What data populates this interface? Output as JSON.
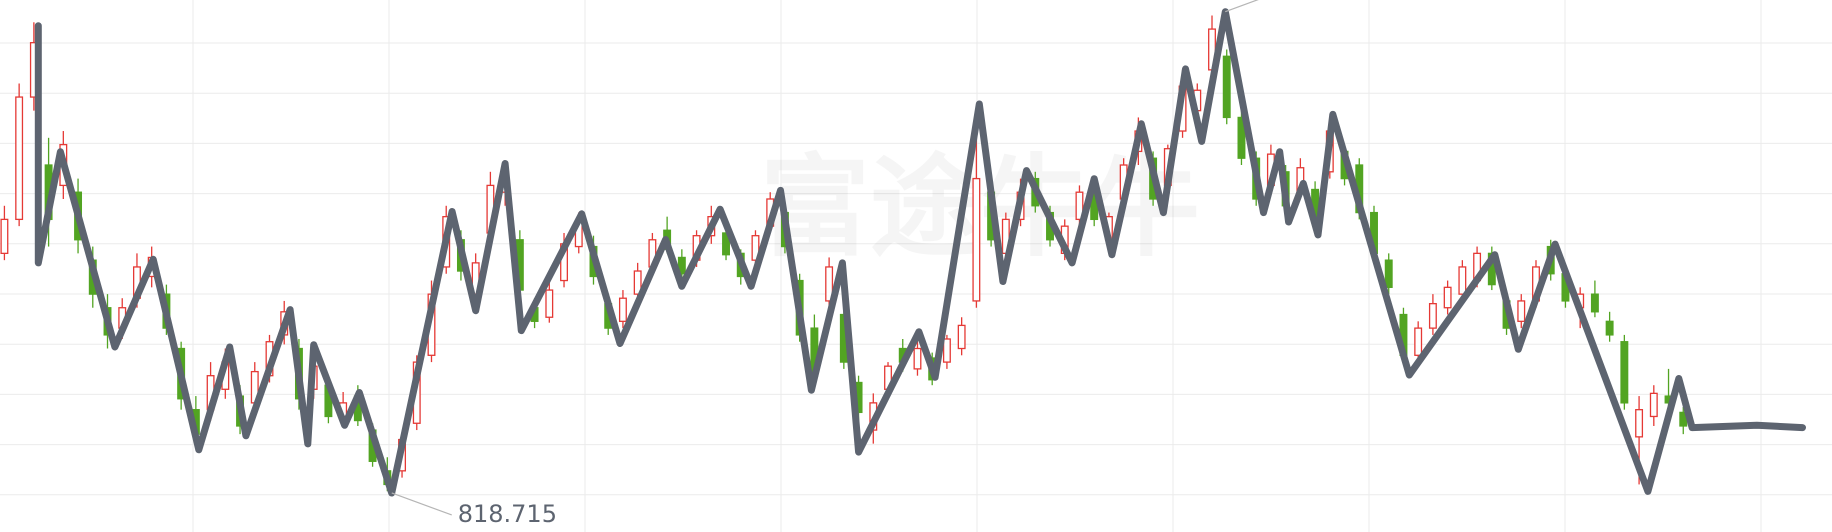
{
  "chart_data": {
    "type": "candlestick",
    "watermark": "富途牛牛",
    "grid": true,
    "xlim": [
      -0.3,
      124.1
    ],
    "ylim": [
      790,
      1181.4
    ],
    "candles": {
      "up_color": "#e53935",
      "down_color": "#52a422",
      "open": [
        995,
        1020,
        1110,
        1060,
        1045,
        1040,
        990,
        955,
        940,
        962,
        978,
        965,
        925,
        880,
        880,
        895,
        890,
        885,
        905,
        935,
        925,
        895,
        898,
        875,
        890,
        865,
        835,
        835,
        870,
        920,
        985,
        1005,
        965,
        1010,
        1040,
        1005,
        955,
        948,
        975,
        1000,
        1000,
        958,
        945,
        965,
        985,
        1012,
        992,
        990,
        1008,
        1010,
        995,
        990,
        1015,
        1025,
        975,
        940,
        960,
        950,
        900,
        865,
        895,
        925,
        910,
        918,
        915,
        925,
        960,
        1040,
        995,
        1020,
        1050,
        1025,
        995,
        1020,
        1040,
        1005,
        1035,
        1070,
        1065,
        1045,
        1085,
        1100,
        1130,
        1140,
        1095,
        1065,
        1045,
        1055,
        1040,
        1042,
        1055,
        1070,
        1060,
        1025,
        990,
        950,
        920,
        940,
        955,
        965,
        975,
        995,
        960,
        945,
        960,
        1000,
        980,
        955,
        965,
        945,
        930,
        860,
        875,
        890,
        878
      ],
      "high": [
        1030,
        1120,
        1165,
        1080,
        1085,
        1050,
        1000,
        965,
        962,
        995,
        1000,
        972,
        930,
        890,
        915,
        925,
        898,
        915,
        935,
        960,
        932,
        920,
        905,
        893,
        898,
        870,
        845,
        862,
        920,
        975,
        1030,
        1012,
        995,
        1055,
        1062,
        1012,
        962,
        975,
        1010,
        1025,
        1008,
        962,
        968,
        988,
        1010,
        1022,
        998,
        1012,
        1030,
        1015,
        998,
        1012,
        1040,
        1030,
        980,
        950,
        992,
        955,
        905,
        892,
        915,
        932,
        935,
        922,
        935,
        948,
        1100,
        1045,
        1025,
        1050,
        1055,
        1030,
        1020,
        1045,
        1050,
        1025,
        1065,
        1095,
        1070,
        1075,
        1130,
        1120,
        1170,
        1145,
        1100,
        1070,
        1075,
        1060,
        1065,
        1048,
        1095,
        1075,
        1065,
        1030,
        995,
        955,
        945,
        965,
        975,
        990,
        1000,
        1000,
        965,
        965,
        990,
        1005,
        985,
        970,
        975,
        952,
        935,
        890,
        898,
        910,
        882
      ],
      "low": [
        990,
        1015,
        1100,
        1000,
        1035,
        995,
        955,
        925,
        932,
        955,
        970,
        935,
        880,
        855,
        872,
        888,
        862,
        880,
        900,
        928,
        880,
        888,
        870,
        868,
        868,
        838,
        820,
        830,
        865,
        915,
        980,
        975,
        960,
        1005,
        1030,
        960,
        940,
        944,
        970,
        995,
        972,
        935,
        940,
        960,
        980,
        995,
        975,
        985,
        1002,
        990,
        972,
        985,
        1010,
        995,
        930,
        900,
        955,
        910,
        870,
        855,
        890,
        908,
        905,
        898,
        910,
        920,
        955,
        1000,
        990,
        1015,
        1025,
        1000,
        990,
        1015,
        1015,
        998,
        1030,
        1060,
        1030,
        1040,
        1080,
        1085,
        1125,
        1090,
        1060,
        1030,
        1040,
        1025,
        1035,
        1015,
        1050,
        1045,
        1020,
        990,
        965,
        915,
        912,
        935,
        950,
        960,
        970,
        968,
        935,
        940,
        955,
        975,
        955,
        940,
        948,
        930,
        880,
        825,
        868,
        880,
        862
      ],
      "close": [
        1020,
        1110,
        1150,
        1020,
        1075,
        1005,
        965,
        935,
        955,
        985,
        992,
        940,
        888,
        862,
        905,
        915,
        868,
        908,
        930,
        952,
        888,
        912,
        875,
        885,
        872,
        842,
        825,
        858,
        915,
        965,
        1022,
        982,
        988,
        1045,
        1055,
        968,
        945,
        968,
        1002,
        1018,
        978,
        940,
        962,
        982,
        1005,
        998,
        980,
        1008,
        1022,
        994,
        978,
        1008,
        1035,
        1000,
        935,
        905,
        985,
        915,
        878,
        885,
        912,
        915,
        925,
        902,
        932,
        942,
        1050,
        1005,
        1020,
        1040,
        1030,
        1005,
        1015,
        1040,
        1020,
        1022,
        1060,
        1085,
        1035,
        1072,
        1118,
        1115,
        1160,
        1095,
        1065,
        1035,
        1068,
        1030,
        1058,
        1020,
        1085,
        1050,
        1025,
        995,
        970,
        920,
        940,
        958,
        970,
        985,
        995,
        972,
        940,
        960,
        985,
        980,
        960,
        965,
        952,
        935,
        885,
        880,
        892,
        885,
        868
      ]
    },
    "line": {
      "color": "#5d6470",
      "x": [
        2.3,
        2.3,
        3.8,
        7.5,
        10.1,
        13.2,
        15.3,
        16.4,
        19.4,
        20.6,
        21.0,
        23.1,
        24.1,
        26.3,
        30.4,
        32.0,
        34.0,
        35.1,
        39.2,
        41.8,
        44.9,
        46.0,
        48.6,
        50.7,
        52.7,
        54.8,
        56.9,
        58.0,
        62.1,
        63.2,
        66.2,
        67.8,
        69.4,
        72.5,
        74.0,
        75.2,
        77.2,
        78.7,
        80.2,
        81.3,
        82.9,
        85.5,
        86.6,
        87.2,
        88.2,
        89.2,
        90.2,
        95.4,
        101.2,
        102.8,
        105.3,
        111.6,
        113.7,
        114.6,
        119.0,
        122.1
      ],
      "values": [
        1162.5,
        988.0,
        1069.7,
        926.1,
        990.6,
        850.5,
        926.1,
        860.8,
        953.6,
        854.8,
        927.8,
        868.5,
        892.6,
        818.715,
        1025.8,
        952.8,
        1061.1,
        938.2,
        1024.1,
        928.7,
        1005.2,
        970.8,
        1027.5,
        970.8,
        1041.3,
        894.3,
        988.0,
        848.8,
        937.3,
        903.8,
        1104.9,
        974.3,
        1055.9,
        988.0,
        1049.9,
        994.0,
        1090.3,
        1025.0,
        1130.7,
        1077.4,
        1172.82,
        1025.0,
        1069.7,
        1018.1,
        1046.5,
        1008.6,
        1097.2,
        905.5,
        994.0,
        924.4,
        1001.8,
        819.9,
        902.9,
        866.8,
        868.5,
        866.8
      ]
    }
  }
}
